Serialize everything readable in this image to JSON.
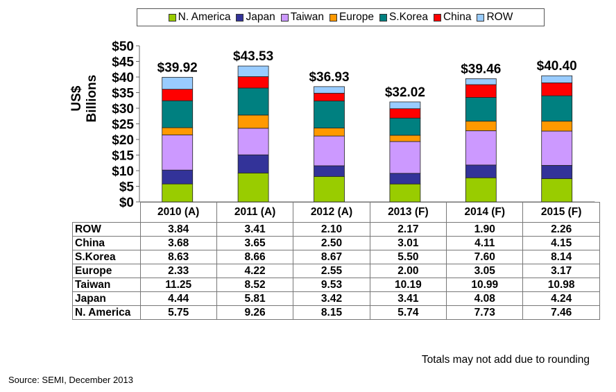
{
  "chart_data": {
    "type": "bar",
    "stacked": true,
    "title": "",
    "xlabel": "",
    "ylabel": "US$ Billions",
    "ylim": [
      0,
      50
    ],
    "yticks": [
      "$0",
      "$5",
      "$10",
      "$15",
      "$20",
      "$25",
      "$30",
      "$35",
      "$40",
      "$45",
      "$50"
    ],
    "ytick_values": [
      0,
      5,
      10,
      15,
      20,
      25,
      30,
      35,
      40,
      45,
      50
    ],
    "grid": false,
    "legend_position": "top-center",
    "categories": [
      "2010 (A)",
      "2011 (A)",
      "2012 (A)",
      "2013 (F)",
      "2014 (F)",
      "2015 (F)"
    ],
    "totals": [
      "$39.92",
      "$43.53",
      "$36.93",
      "$32.02",
      "$39.46",
      "$40.40"
    ],
    "series": [
      {
        "name": "N. America",
        "color": "#99CC00",
        "values": [
          5.75,
          9.26,
          8.15,
          5.74,
          7.73,
          7.46
        ]
      },
      {
        "name": "Japan",
        "color": "#333399",
        "values": [
          4.44,
          5.81,
          3.42,
          3.41,
          4.08,
          4.24
        ]
      },
      {
        "name": "Taiwan",
        "color": "#CC99FF",
        "values": [
          11.25,
          8.52,
          9.53,
          10.19,
          10.99,
          10.98
        ]
      },
      {
        "name": "Europe",
        "color": "#FF9900",
        "values": [
          2.33,
          4.22,
          2.55,
          2.0,
          3.05,
          3.17
        ]
      },
      {
        "name": "S.Korea",
        "color": "#008080",
        "values": [
          8.63,
          8.66,
          8.67,
          5.5,
          7.6,
          8.14
        ]
      },
      {
        "name": "China",
        "color": "#FF0000",
        "values": [
          3.68,
          3.65,
          2.5,
          3.01,
          4.11,
          4.15
        ]
      },
      {
        "name": "ROW",
        "color": "#99CCFF",
        "values": [
          3.84,
          3.41,
          2.1,
          2.17,
          1.9,
          2.26
        ]
      }
    ],
    "table": {
      "columns": [
        "2010 (A)",
        "2011 (A)",
        "2012 (A)",
        "2013 (F)",
        "2014 (F)",
        "2015 (F)"
      ],
      "rows": [
        {
          "label": "ROW",
          "cells": [
            "3.84",
            "3.41",
            "2.10",
            "2.17",
            "1.90",
            "2.26"
          ]
        },
        {
          "label": "China",
          "cells": [
            "3.68",
            "3.65",
            "2.50",
            "3.01",
            "4.11",
            "4.15"
          ]
        },
        {
          "label": "S.Korea",
          "cells": [
            "8.63",
            "8.66",
            "8.67",
            "5.50",
            "7.60",
            "8.14"
          ]
        },
        {
          "label": "Europe",
          "cells": [
            "2.33",
            "4.22",
            "2.55",
            "2.00",
            "3.05",
            "3.17"
          ]
        },
        {
          "label": "Taiwan",
          "cells": [
            "11.25",
            "8.52",
            "9.53",
            "10.19",
            "10.99",
            "10.98"
          ]
        },
        {
          "label": "Japan",
          "cells": [
            "4.44",
            "5.81",
            "3.42",
            "3.41",
            "4.08",
            "4.24"
          ]
        },
        {
          "label": "N. America",
          "cells": [
            "5.75",
            "9.26",
            "8.15",
            "5.74",
            "7.73",
            "7.46"
          ]
        }
      ]
    },
    "annotations": [
      "Totals may not add due to rounding"
    ],
    "source": "Source: SEMI, December 2013"
  }
}
